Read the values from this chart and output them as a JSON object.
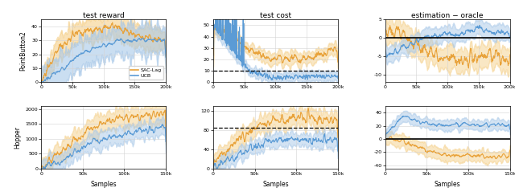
{
  "colors": {
    "sac_lag": "#E8A23A",
    "ucb": "#5B9BD5",
    "sac_lag_fill": "#F5D08A",
    "ucb_fill": "#A8C8E8"
  },
  "titles": [
    "test reward",
    "test cost",
    "estimation − oracle"
  ],
  "row_labels": [
    "PointButton2",
    "Hopper"
  ],
  "xlabel": "Samples",
  "legend": [
    "SAC-Lag",
    "UCB"
  ],
  "top_reward": {
    "x_max": 200000,
    "ylim": [
      0,
      45
    ],
    "yticks": [
      0,
      10,
      20,
      30,
      40
    ],
    "xticks": [
      0,
      50000,
      100000,
      150000,
      200000
    ],
    "xticklabels": [
      "0",
      "50k",
      "100k",
      "150k",
      "200k"
    ]
  },
  "top_cost": {
    "x_max": 200000,
    "ylim": [
      0,
      55
    ],
    "yticks": [
      0,
      10,
      20,
      30,
      40,
      50
    ],
    "xticks": [
      0,
      50000,
      100000,
      150000,
      200000
    ],
    "xticklabels": [
      "0",
      "50k",
      "100k",
      "150k",
      "200k"
    ],
    "dashed_line": 10
  },
  "top_est": {
    "x_max": 200000,
    "ylim": [
      -12,
      5
    ],
    "yticks": [
      -10,
      -5,
      0,
      5
    ],
    "xticks": [
      0,
      50000,
      100000,
      150000,
      200000
    ],
    "xticklabels": [
      "0",
      "50k",
      "100k",
      "150k",
      "200k"
    ],
    "hline": 0
  },
  "bot_reward": {
    "x_max": 150000,
    "ylim": [
      0,
      2100
    ],
    "yticks": [
      0,
      500,
      1000,
      1500,
      2000
    ],
    "xticks": [
      0,
      50000,
      100000,
      150000
    ],
    "xticklabels": [
      "0",
      "50k",
      "100k",
      "150k"
    ]
  },
  "bot_cost": {
    "x_max": 150000,
    "ylim": [
      0,
      130
    ],
    "yticks": [
      0,
      40,
      80,
      120
    ],
    "xticks": [
      0,
      50000,
      100000,
      150000
    ],
    "xticklabels": [
      "0",
      "50k",
      "100k",
      "150k"
    ],
    "dashed_line": 85
  },
  "bot_est": {
    "x_max": 150000,
    "ylim": [
      -45,
      50
    ],
    "yticks": [
      -40,
      -20,
      0,
      20,
      40
    ],
    "xticks": [
      0,
      50000,
      100000,
      150000
    ],
    "xticklabels": [
      "0",
      "50k",
      "100k",
      "150k"
    ],
    "hline": 0
  }
}
